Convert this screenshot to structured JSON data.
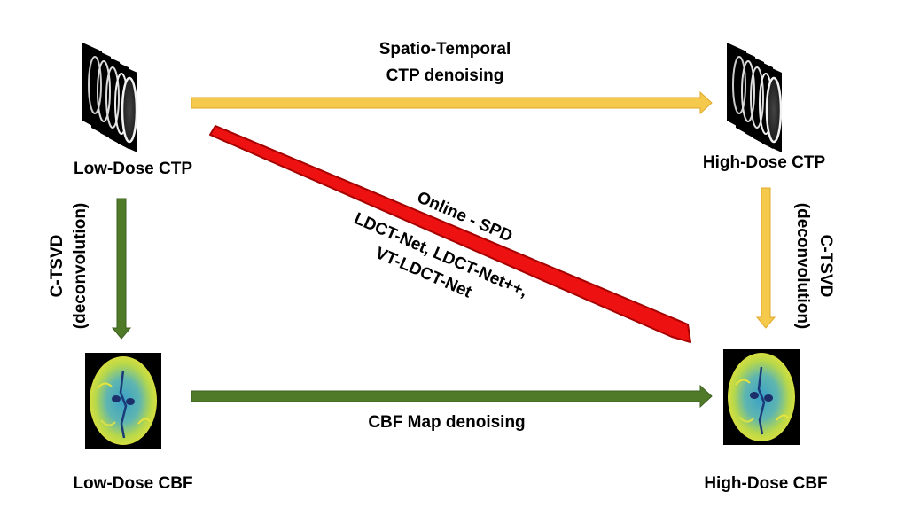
{
  "nodes": {
    "low_dose_ctp": "Low-Dose CTP",
    "high_dose_ctp": "High-Dose CTP",
    "low_dose_cbf": "Low-Dose CBF",
    "high_dose_cbf": "High-Dose CBF"
  },
  "edges": {
    "ctp_denoising": {
      "line1": "Spatio-Temporal",
      "line2": "CTP denoising",
      "color": "#f5c94c",
      "stroke": "#e0a92a"
    },
    "cbf_denoising": {
      "label": "CBF Map denoising",
      "color": "#4f7a28"
    },
    "diagonal": {
      "line1": "Online - SPD",
      "line2": "LDCT-Net, LDCT-Net++,",
      "line3": "VT-LDCT-Net",
      "color": "#ee1111",
      "stroke": "#a50000"
    },
    "left_deconv": {
      "line1": "C-TSVD",
      "line2": "(deconvolution)",
      "color": "#4f7a28"
    },
    "right_deconv": {
      "line1": "C-TSVD",
      "line2": "(deconvolution)",
      "color": "#f5c94c"
    }
  },
  "images": {
    "ctp_stack": "ct-slice-stack",
    "cbf_map": "cbf-perfusion-map"
  }
}
